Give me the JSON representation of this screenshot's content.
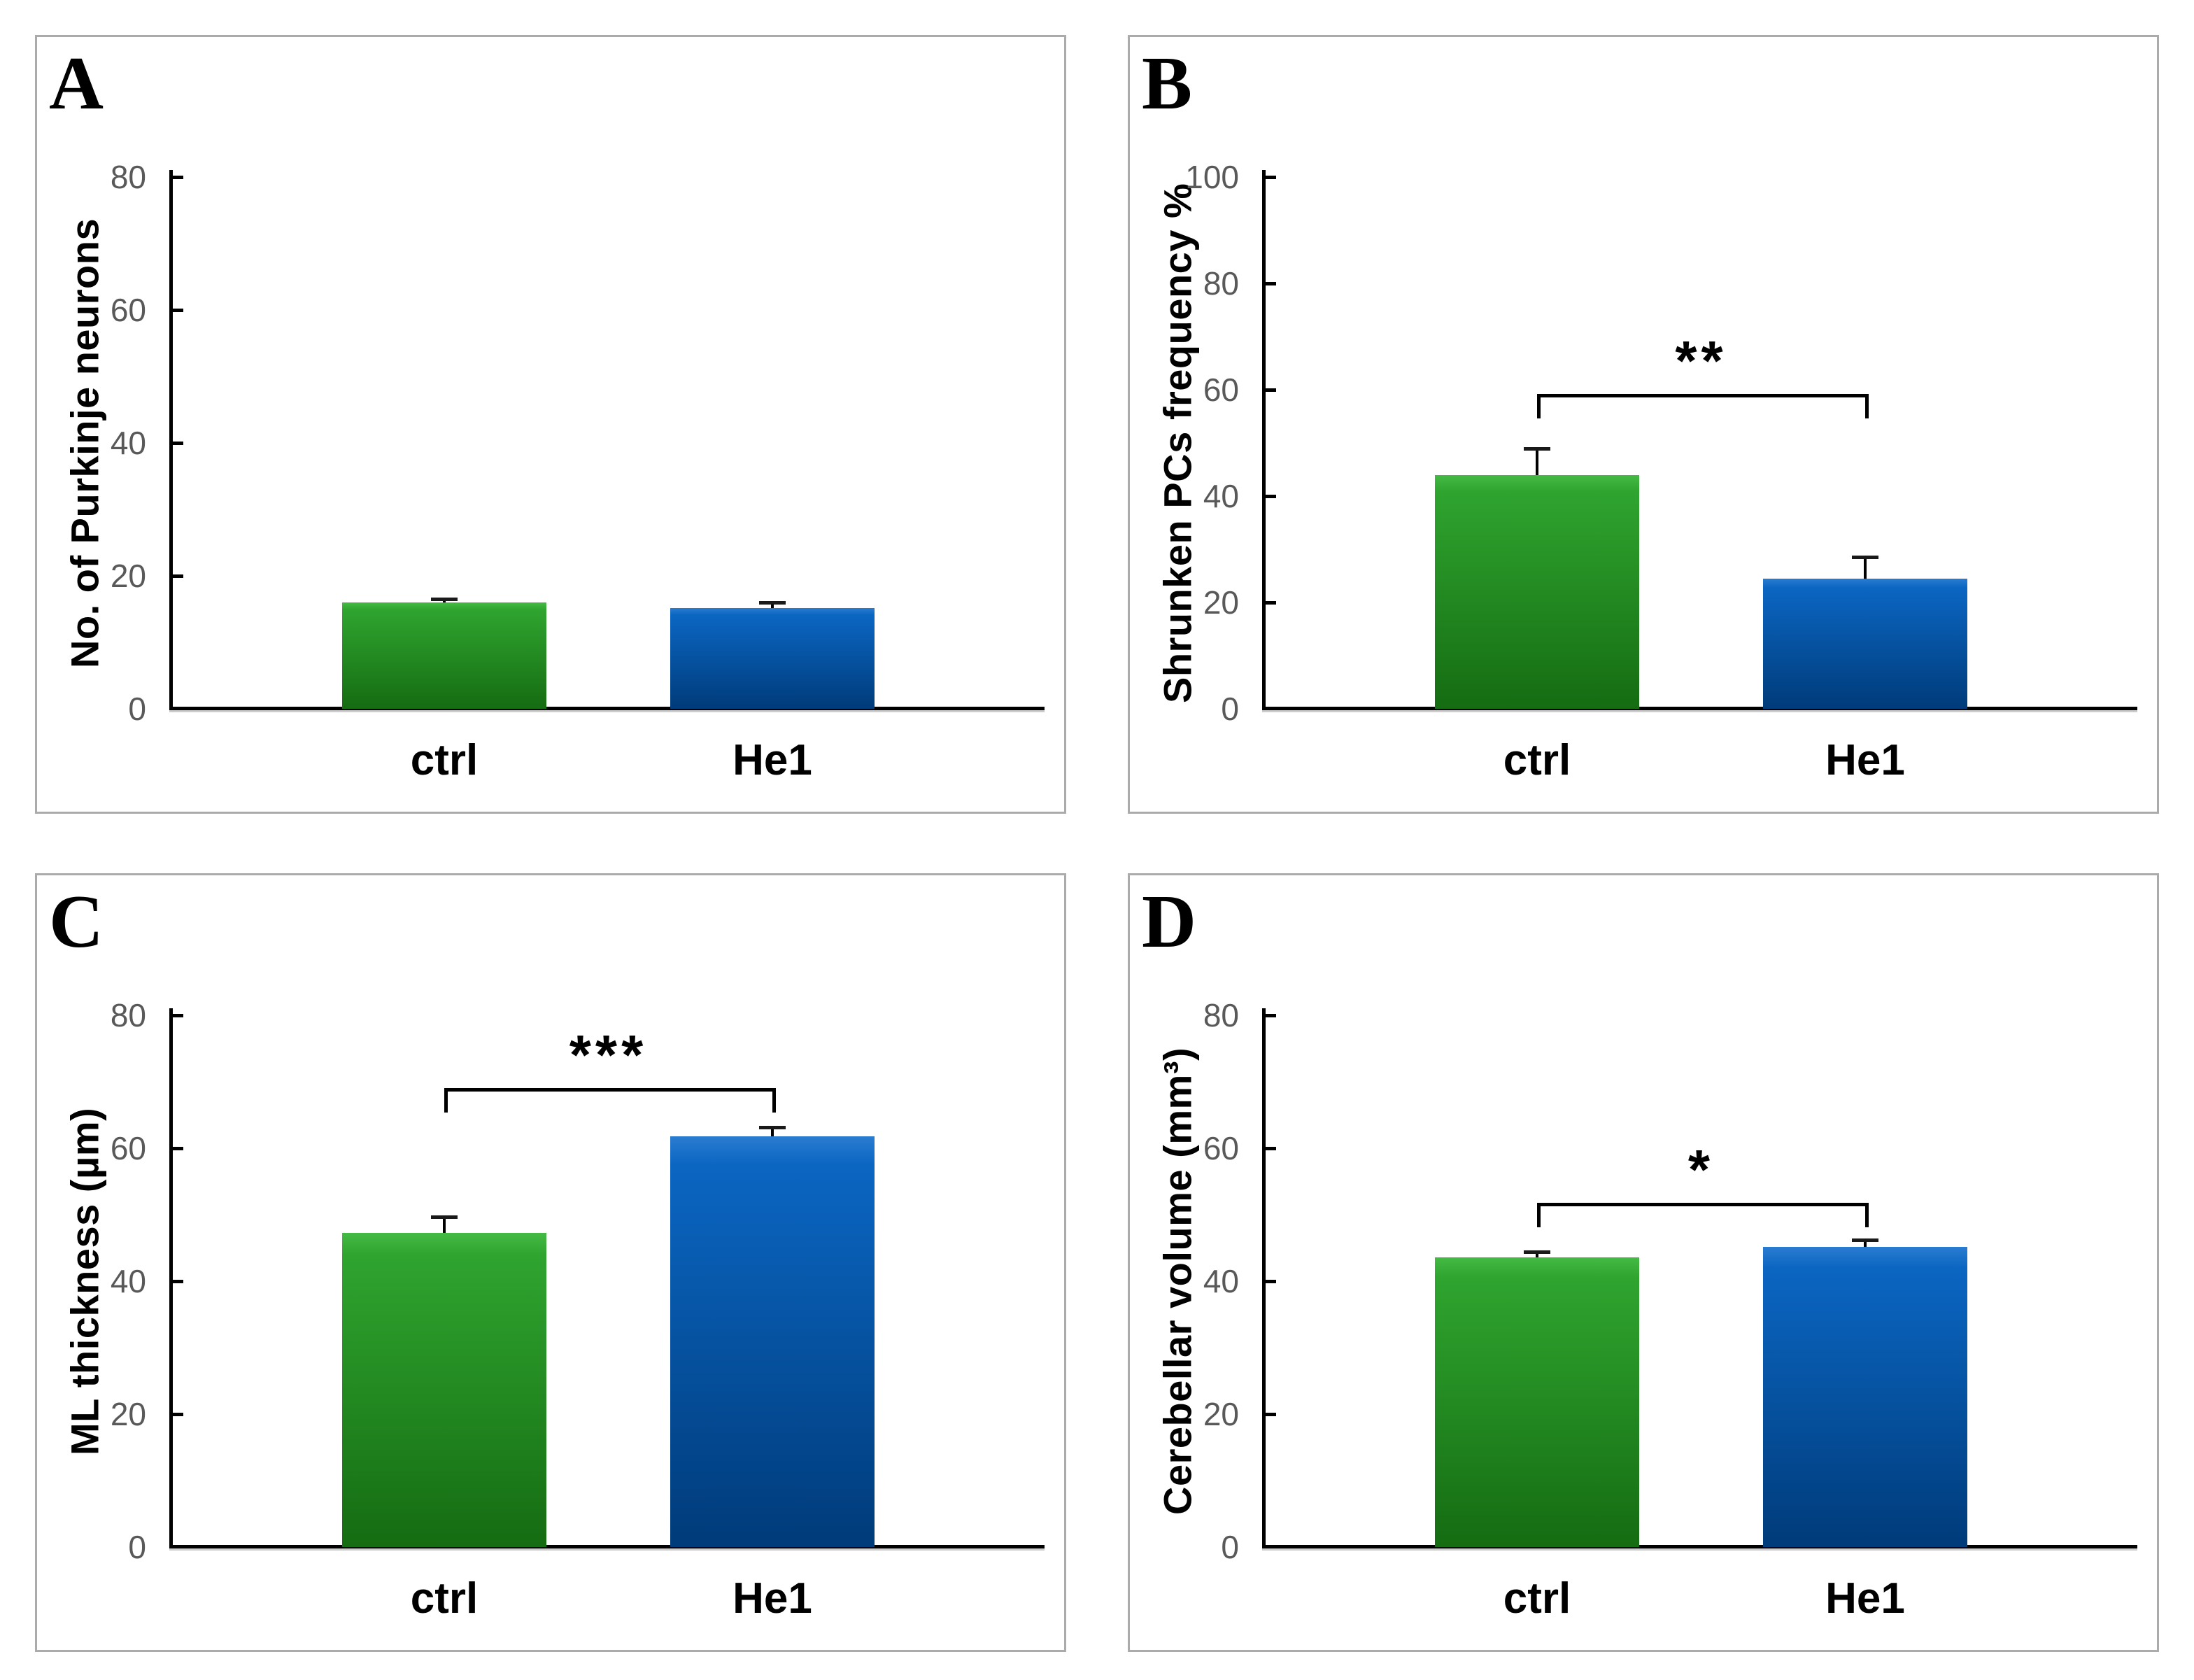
{
  "figure": {
    "kind": "two-by-two bar chart figure",
    "background": "#ffffff",
    "panel_border_color": "#ababab",
    "axis_color": "#000000",
    "tick_label_color": "#595959",
    "bar_colors": {
      "ctrl": {
        "top": "#44bb44",
        "mid": "#2fa42f",
        "bottom": "#156c12"
      },
      "He1": {
        "top": "#2a7cd0",
        "mid": "#0b66c2",
        "bottom": "#003b7a"
      }
    }
  },
  "chart_data": [
    {
      "type": "bar",
      "panel": "A",
      "title": "",
      "xlabel": "",
      "ylabel": "No. of Purkinje neurons",
      "categories": [
        "ctrl",
        "He1"
      ],
      "values": [
        16,
        15.2
      ],
      "errors": [
        0.5,
        0.85
      ],
      "ylim": [
        0,
        80
      ],
      "yticks": [
        0,
        20,
        40,
        60,
        80
      ],
      "grid": false,
      "legend": null,
      "significance": null
    },
    {
      "type": "bar",
      "panel": "B",
      "title": "",
      "xlabel": "",
      "ylabel": "Shrunken PCs frequency %",
      "categories": [
        "ctrl",
        "He1"
      ],
      "values": [
        44,
        24.5
      ],
      "errors": [
        5,
        4
      ],
      "ylim": [
        0,
        100
      ],
      "yticks": [
        0,
        20,
        40,
        60,
        80,
        100
      ],
      "grid": false,
      "legend": null,
      "significance": {
        "symbol": "**",
        "between": [
          "ctrl",
          "He1"
        ],
        "bracket_y": 58.5
      }
    },
    {
      "type": "bar",
      "panel": "C",
      "title": "",
      "xlabel": "",
      "ylabel": "ML thickness (µm)",
      "categories": [
        "ctrl",
        "He1"
      ],
      "values": [
        47.3,
        61.8
      ],
      "errors": [
        2.4,
        1.4
      ],
      "ylim": [
        0,
        80
      ],
      "yticks": [
        0,
        20,
        40,
        60,
        80
      ],
      "grid": false,
      "legend": null,
      "significance": {
        "symbol": "***",
        "between": [
          "ctrl",
          "He1"
        ],
        "bracket_y": 68.5
      }
    },
    {
      "type": "bar",
      "panel": "D",
      "title": "",
      "xlabel": "",
      "ylabel": "Cerebellar volume (mm³)",
      "categories": [
        "ctrl",
        "He1"
      ],
      "values": [
        43.6,
        45.2
      ],
      "errors": [
        0.8,
        1.0
      ],
      "ylim": [
        0,
        80
      ],
      "yticks": [
        0,
        20,
        40,
        60,
        80
      ],
      "grid": false,
      "legend": null,
      "significance": {
        "symbol": "*",
        "between": [
          "ctrl",
          "He1"
        ],
        "bracket_y": 51.3
      }
    }
  ]
}
